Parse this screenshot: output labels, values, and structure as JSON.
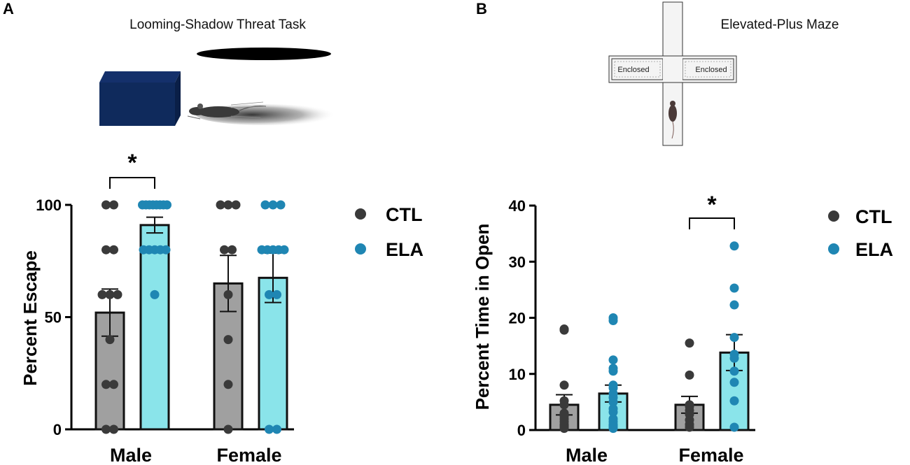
{
  "colors": {
    "ctl_bar": "#a0a0a0",
    "ctl_dot": "#3a3a3a",
    "ela_bar": "#8ae4ea",
    "ela_dot": "#1f86b3",
    "box_navy": "#0f2a5c"
  },
  "panel_a": {
    "label": "A",
    "illustration_title": "Looming-Shadow Threat Task"
  },
  "panel_b": {
    "label": "B",
    "illustration_title": "Elevated-Plus Maze",
    "maze_labels": [
      "Enclosed",
      "Enclosed"
    ]
  },
  "chart_data": [
    {
      "type": "bar",
      "panel": "A",
      "title": "",
      "xlabel": "",
      "ylabel": "Percent Escape",
      "ylim": [
        0,
        100
      ],
      "yticks": [
        0,
        50,
        100
      ],
      "categories": [
        "Male",
        "Female"
      ],
      "legend": [
        "CTL",
        "ELA"
      ],
      "significance": [
        {
          "category": "Male",
          "label": "*"
        }
      ],
      "series": [
        {
          "name": "CTL",
          "values": [
            52,
            65
          ],
          "sem": [
            10.5,
            12.5
          ],
          "points": [
            [
              100,
              100,
              80,
              80,
              60,
              60,
              60,
              40,
              20,
              20,
              0,
              0
            ],
            [
              100,
              100,
              100,
              80,
              80,
              60,
              40,
              20,
              0
            ]
          ]
        },
        {
          "name": "ELA",
          "values": [
            91,
            67.5
          ],
          "sem": [
            3.5,
            11
          ],
          "points": [
            [
              100,
              100,
              100,
              100,
              100,
              100,
              100,
              100,
              80,
              80,
              80,
              80,
              80,
              60
            ],
            [
              100,
              100,
              100,
              80,
              80,
              80,
              80,
              80,
              60,
              60,
              0,
              0
            ]
          ]
        }
      ]
    },
    {
      "type": "bar",
      "panel": "B",
      "title": "",
      "xlabel": "",
      "ylabel": "Percent Time in Open",
      "ylim": [
        0,
        40
      ],
      "yticks": [
        0,
        10,
        20,
        30,
        40
      ],
      "categories": [
        "Male",
        "Female"
      ],
      "legend": [
        "CTL",
        "ELA"
      ],
      "significance": [
        {
          "category": "Female",
          "label": "*"
        }
      ],
      "series": [
        {
          "name": "CTL",
          "values": [
            4.5,
            4.5
          ],
          "sem": [
            1.8,
            1.5
          ],
          "points": [
            [
              18,
              17.8,
              8,
              5.2,
              4.5,
              3,
              2.8,
              2.5,
              2,
              1.5,
              1,
              0.8,
              0.5,
              0.3
            ],
            [
              15.5,
              9.8,
              4.5,
              4.2,
              3.5,
              2.8,
              1.8,
              1,
              0.5
            ]
          ]
        },
        {
          "name": "ELA",
          "values": [
            6.5,
            13.8
          ],
          "sem": [
            1.5,
            3.2
          ],
          "points": [
            [
              20,
              19.5,
              12.5,
              11,
              10.5,
              8,
              7.5,
              6.5,
              5.8,
              5,
              3.8,
              3.2,
              2,
              1.5,
              1,
              0.8,
              0.5,
              0.3
            ],
            [
              32.8,
              25.3,
              22.3,
              16.5,
              13.5,
              12.8,
              10.5,
              8.5,
              5.2,
              0.5
            ]
          ]
        }
      ]
    }
  ]
}
